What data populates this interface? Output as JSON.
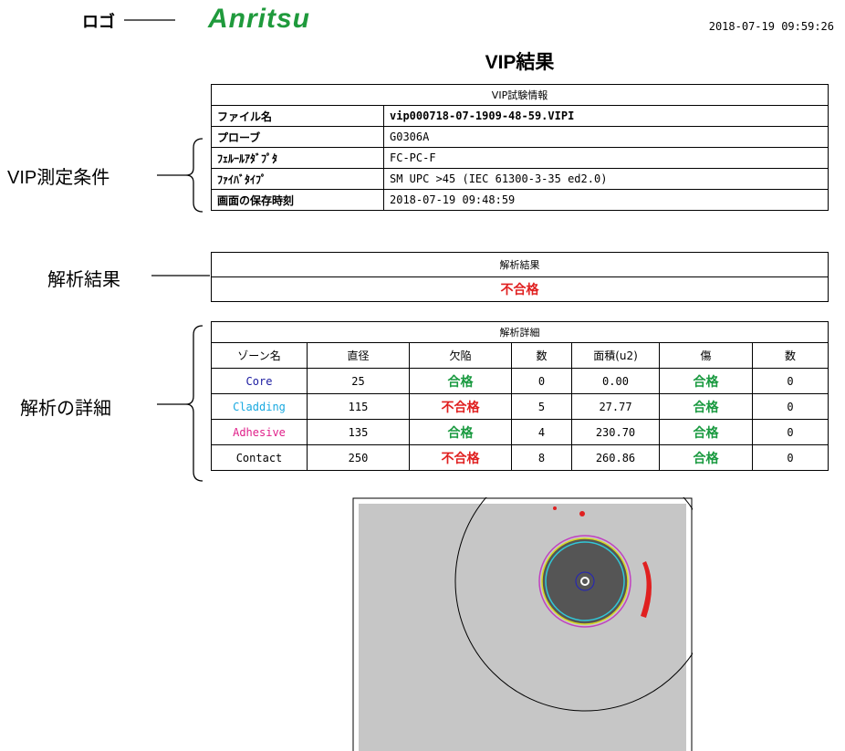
{
  "annotations": {
    "logo": "ロゴ",
    "conditions": "VIP測定条件",
    "result": "解析結果",
    "details": "解析の詳細"
  },
  "header": {
    "logo": "Anritsu",
    "timestamp": "2018-07-19 09:59:26",
    "title": "VIP結果"
  },
  "info_table": {
    "title": "VIP試験情報",
    "rows": [
      [
        "ファイル名",
        "vip000718-07-1909-48-59.VIPI"
      ],
      [
        "プローブ",
        "G0306A"
      ],
      [
        "ﾌｪﾙｰﾙｱﾀﾞﾌﾟﾀ",
        "FC-PC-F"
      ],
      [
        "ﾌｧｲﾊﾞﾀｲﾌﾟ",
        "SM UPC >45 (IEC 61300-3-35 ed2.0)"
      ],
      [
        "画面の保存時刻",
        "2018-07-19 09:48:59"
      ]
    ]
  },
  "result_table": {
    "title": "解析結果",
    "value": "不合格"
  },
  "details_table": {
    "title": "解析詳細",
    "headers": [
      "ゾーン名",
      "直径",
      "欠陥",
      "数",
      "面積(u2)",
      "傷",
      "数"
    ],
    "rows": [
      [
        "Core",
        "25",
        "合格",
        "0",
        "0.00",
        "合格",
        "0"
      ],
      [
        "Cladding",
        "115",
        "不合格",
        "5",
        "27.77",
        "合格",
        "0"
      ],
      [
        "Adhesive",
        "135",
        "合格",
        "4",
        "230.70",
        "合格",
        "0"
      ],
      [
        "Contact",
        "250",
        "不合格",
        "8",
        "260.86",
        "合格",
        "0"
      ]
    ]
  }
}
